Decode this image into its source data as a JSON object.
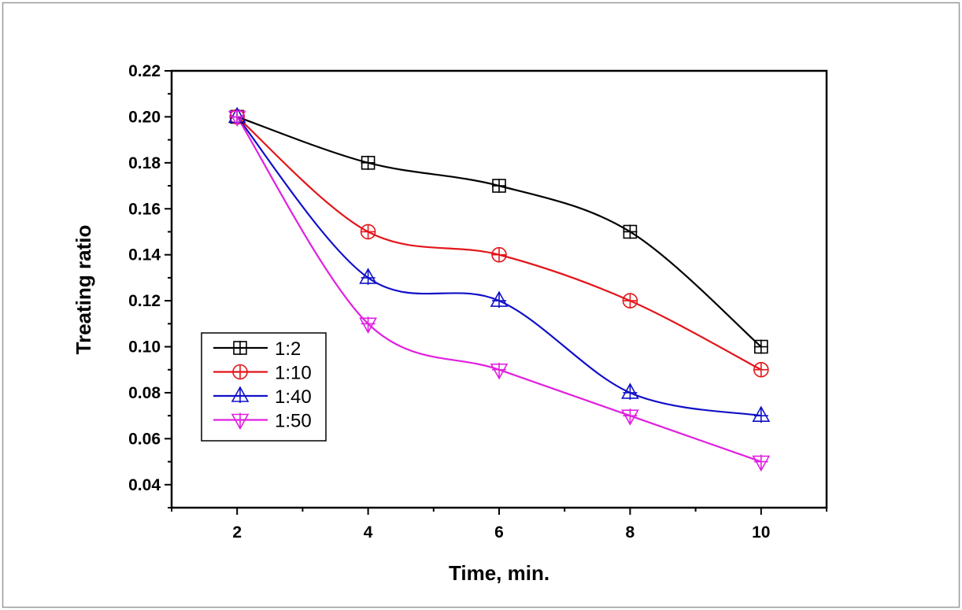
{
  "chart_data": {
    "type": "line",
    "title": "",
    "xlabel": "Time, min.",
    "ylabel": "Treating ratio",
    "x": [
      2,
      4,
      6,
      8,
      10
    ],
    "xlim": [
      1,
      11
    ],
    "ylim": [
      0.03,
      0.22
    ],
    "xticks": [
      "2",
      "4",
      "6",
      "8",
      "10"
    ],
    "yticks": [
      "0.04",
      "0.06",
      "0.08",
      "0.10",
      "0.12",
      "0.14",
      "0.16",
      "0.18",
      "0.20",
      "0.22"
    ],
    "grid": false,
    "legend_position": "center-left",
    "smoothed": true,
    "series": [
      {
        "name": "1:2",
        "values": [
          0.2,
          0.18,
          0.17,
          0.15,
          0.1
        ],
        "color": "#000000",
        "marker": "square-plus"
      },
      {
        "name": "1:10",
        "values": [
          0.2,
          0.15,
          0.14,
          0.12,
          0.09
        ],
        "color": "#e3151a",
        "marker": "circle-plus"
      },
      {
        "name": "1:40",
        "values": [
          0.2,
          0.13,
          0.12,
          0.08,
          0.07
        ],
        "color": "#1010c8",
        "marker": "triangle-up-plus"
      },
      {
        "name": "1:50",
        "values": [
          0.2,
          0.11,
          0.09,
          0.07,
          0.05
        ],
        "color": "#e020e0",
        "marker": "triangle-down-plus"
      }
    ]
  }
}
